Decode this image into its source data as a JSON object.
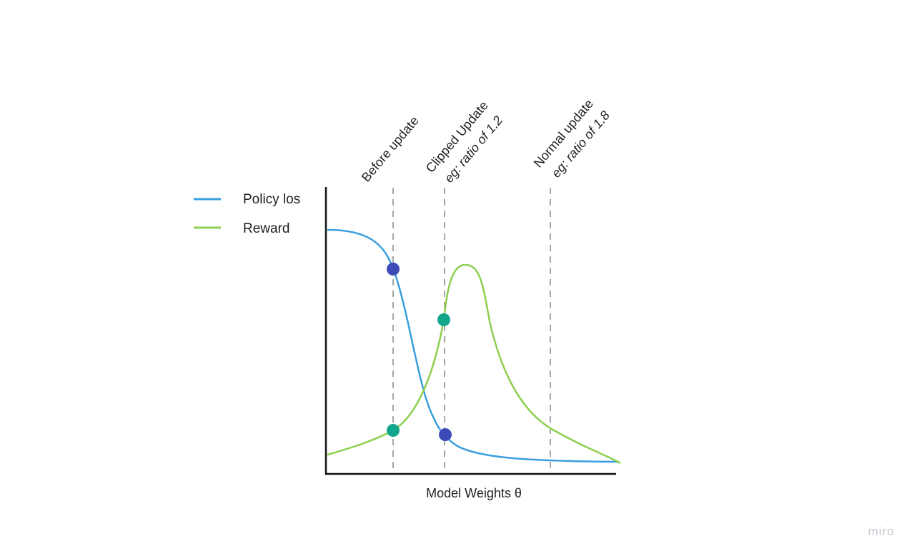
{
  "legend": [
    {
      "label": "Policy los",
      "color": "#3a9ede"
    },
    {
      "label": "Reward",
      "color": "#8ccf4d"
    }
  ],
  "x_axis_label": "Model Weights θ",
  "markers": [
    {
      "line1": "Before update",
      "line2": ""
    },
    {
      "line1": "Clipped Update",
      "line2": "eg: ratio of 1.2"
    },
    {
      "line1": "Normal update",
      "line2": "eg: ratio of 1.8"
    }
  ],
  "points": [
    {
      "series": "Policy los",
      "marker": "Before update",
      "color": "#3d4ab8"
    },
    {
      "series": "Reward",
      "marker": "Before update",
      "color": "#12a78c"
    },
    {
      "series": "Reward",
      "marker": "Clipped Update",
      "color": "#12a78c"
    },
    {
      "series": "Policy los",
      "marker": "Clipped Update",
      "color": "#3d4ab8"
    }
  ],
  "colors": {
    "axis": "#111111",
    "dashed_line": "#a6a6a6",
    "watermark": "#c4c8d0"
  },
  "watermark": "miro"
}
